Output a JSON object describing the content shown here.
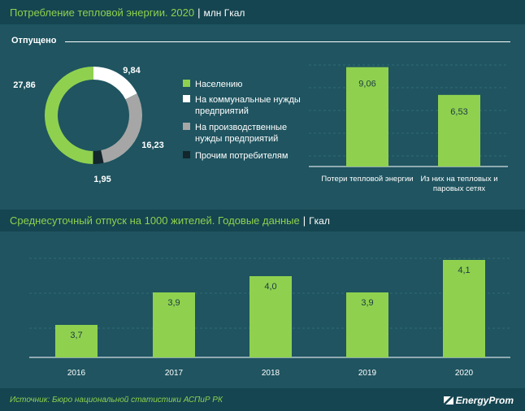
{
  "header1": {
    "title": "Потребление тепловой энергии. 2020",
    "sep": "|",
    "unit": "млн Гкал"
  },
  "panel_label": "Отпущено",
  "header2": {
    "title": "Среднесуточный отпуск на 1000 жителей. Годовые данные",
    "sep": "|",
    "unit": "Гкал"
  },
  "source": "Источник: Бюро национальной статистики АСПиР РК",
  "brand": "EnergyProm",
  "colors": {
    "green": "#8fd14f",
    "white": "#ffffff",
    "grey": "#a6a6a6",
    "dark": "#12262b"
  },
  "chart_data": [
    {
      "type": "pie",
      "labels": [
        "Населению",
        "На коммунальные нужды предприятий",
        "На производственные нужды предприятий",
        "Прочим потребителям"
      ],
      "values": [
        27.86,
        9.84,
        16.23,
        1.95
      ],
      "value_labels": [
        "27,86",
        "9,84",
        "16,23",
        "1,95"
      ],
      "colors": [
        "#8fd14f",
        "#ffffff",
        "#a6a6a6",
        "#12262b"
      ],
      "legend": "right"
    },
    {
      "type": "bar",
      "categories": [
        "Потери тепловой энергии",
        "Из них на тепловых и паровых сетях"
      ],
      "values": [
        9.06,
        6.53
      ],
      "value_labels": [
        "9,06",
        "6,53"
      ],
      "ylim": [
        0,
        10
      ]
    },
    {
      "type": "bar",
      "categories": [
        "2016",
        "2017",
        "2018",
        "2019",
        "2020"
      ],
      "values": [
        3.7,
        3.9,
        4.0,
        3.9,
        4.1
      ],
      "value_labels": [
        "3,7",
        "3,9",
        "4,0",
        "3,9",
        "4,1"
      ],
      "ylim": [
        3.5,
        4.15
      ],
      "grid": true
    }
  ]
}
